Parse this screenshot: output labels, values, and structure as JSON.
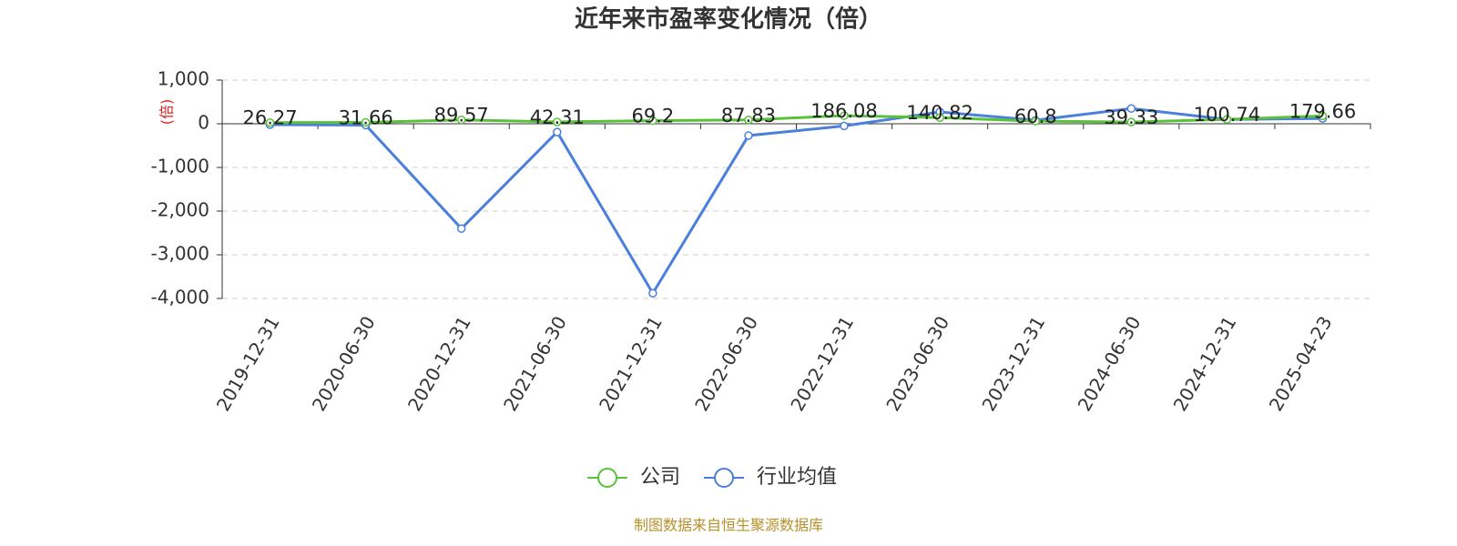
{
  "chart_data": {
    "type": "line",
    "title": "近年来市盈率变化情况（倍）",
    "y_label": "(倍)",
    "categories": [
      "2019-12-31",
      "2020-06-30",
      "2020-12-31",
      "2021-06-30",
      "2021-12-31",
      "2022-06-30",
      "2022-12-31",
      "2023-06-30",
      "2023-12-31",
      "2024-06-30",
      "2024-12-31",
      "2025-04-23"
    ],
    "series": [
      {
        "name": "公司",
        "color": "#5ac23a",
        "values": [
          26.27,
          31.66,
          89.57,
          42.31,
          69.2,
          87.83,
          186.08,
          140.82,
          60.8,
          39.33,
          100.74,
          179.66
        ]
      },
      {
        "name": "行业均值",
        "color": "#4a7fdc",
        "values": [
          -20,
          -30,
          -2400,
          -190,
          -3880,
          -270,
          -50,
          270,
          80,
          350,
          100,
          120
        ]
      }
    ],
    "ylim": [
      -4000,
      1000
    ],
    "yticks": [
      {
        "value": -4000,
        "label": "-4,000"
      },
      {
        "value": -3000,
        "label": "-3,000"
      },
      {
        "value": -2000,
        "label": "-2,000"
      },
      {
        "value": -1000,
        "label": "-1,000"
      },
      0,
      {
        "value": 1000,
        "label": "1,000"
      }
    ],
    "grid": true,
    "source": "制图数据来自恒生聚源数据库"
  }
}
